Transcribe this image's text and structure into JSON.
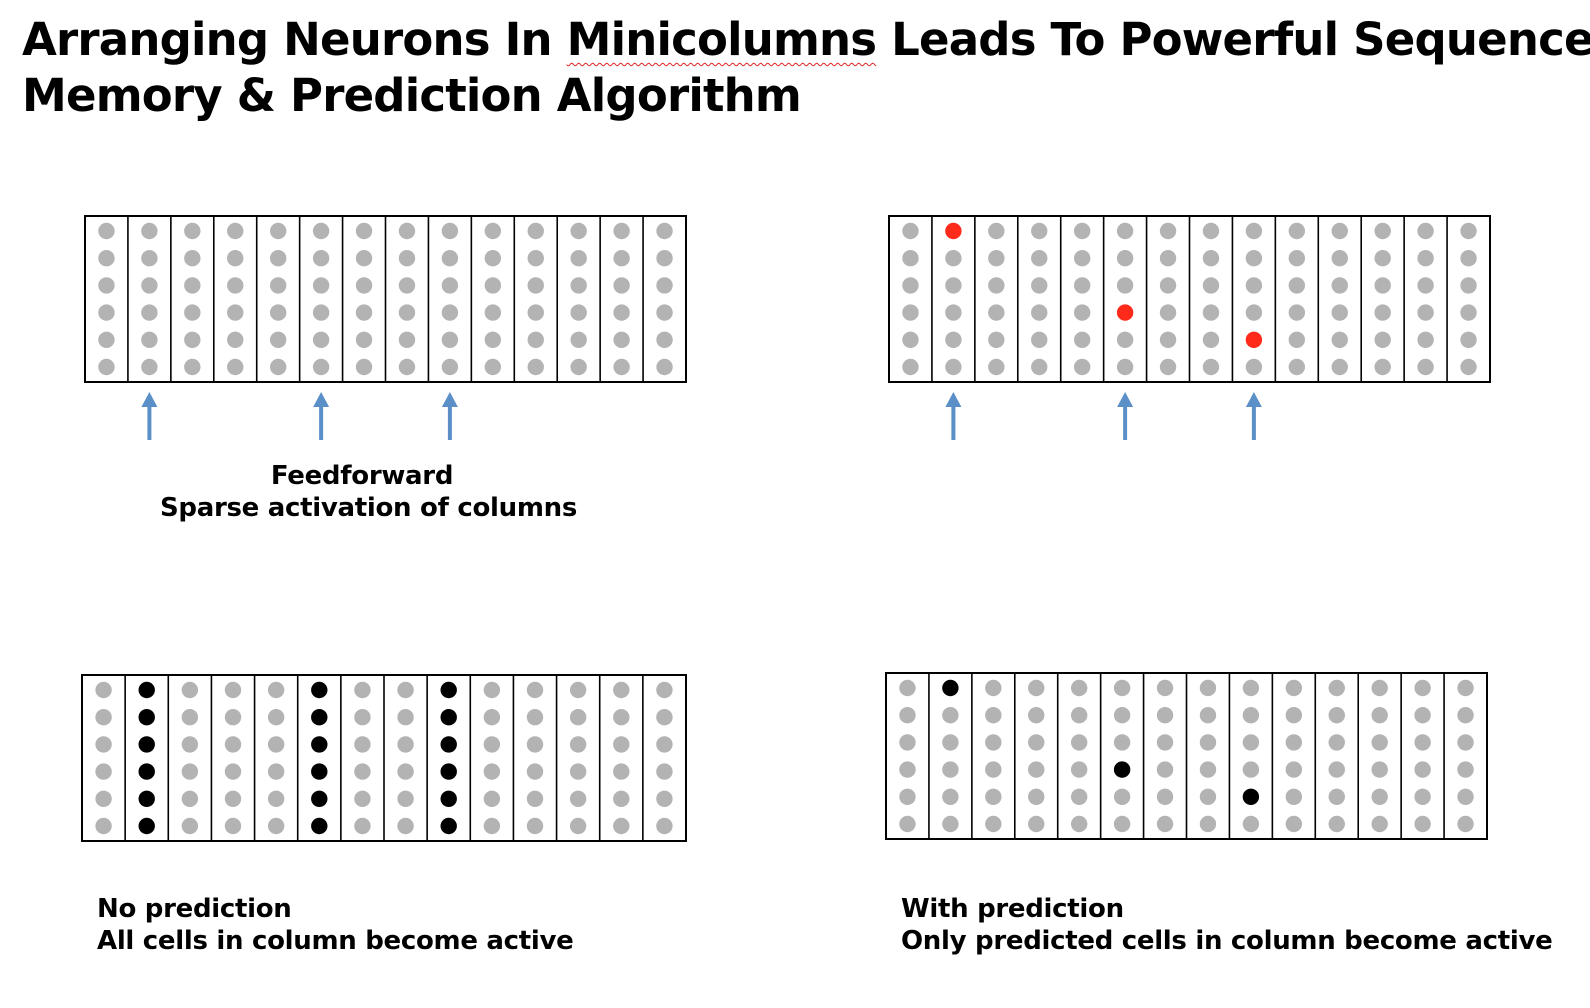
{
  "title": {
    "before": "Arranging Neurons In ",
    "flagged_word": "Minicolumns",
    "after": " Leads To Powerful Sequence",
    "line2": "Memory & Prediction Algorithm"
  },
  "colors": {
    "inactive_cell": "#b3b3b3",
    "predicted_cell": "#ff2a1a",
    "active_cell": "#000000",
    "arrow": "#5b8fc7",
    "border": "#000000"
  },
  "captions": {
    "feedforward_line1": "Feedforward",
    "feedforward_line2": "Sparse activation of columns",
    "no_prediction_line1": "No prediction",
    "no_prediction_line2": "All cells in column become active",
    "with_prediction_line1": "With prediction",
    "with_prediction_line2": "Only predicted cells in column become active"
  },
  "grid": {
    "columns": 14,
    "cells_per_column": 6
  },
  "panels": [
    {
      "id": "feedforward",
      "active_columns": [
        1,
        5,
        8
      ],
      "active_mode": "none",
      "predicted_cells": [],
      "show_arrows": true
    },
    {
      "id": "predicted",
      "active_columns": [
        1,
        5,
        8
      ],
      "active_mode": "none",
      "predicted_cells": [
        [
          1,
          0
        ],
        [
          5,
          3
        ],
        [
          8,
          4
        ]
      ],
      "show_arrows": true
    },
    {
      "id": "no-prediction",
      "active_columns": [
        1,
        5,
        8
      ],
      "active_mode": "all",
      "predicted_cells": [],
      "show_arrows": false
    },
    {
      "id": "with-prediction",
      "active_columns": [
        1,
        5,
        8
      ],
      "active_mode": "predicted",
      "predicted_cells": [
        [
          1,
          0
        ],
        [
          5,
          3
        ],
        [
          8,
          4
        ]
      ],
      "show_arrows": false
    }
  ]
}
